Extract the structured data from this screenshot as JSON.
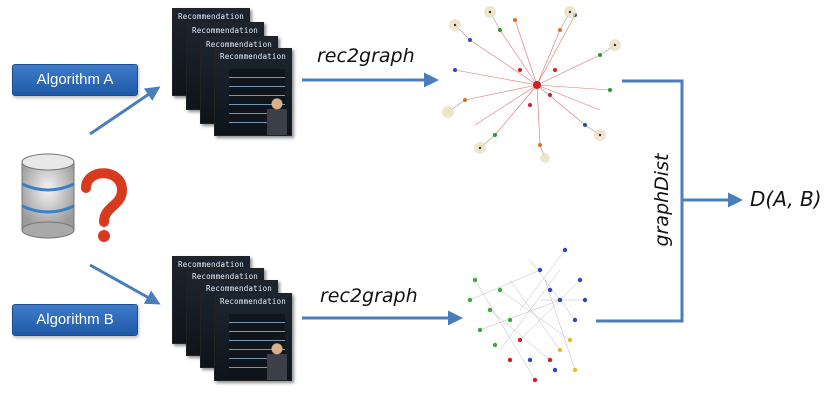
{
  "algorithms": {
    "a_label": "Algorithm A",
    "b_label": "Algorithm B"
  },
  "card_title": "Recommendation",
  "edges": {
    "top_label": "rec2graph",
    "bottom_label": "rec2graph",
    "merge_label": "graphDist"
  },
  "result": {
    "label": "D(A, B)"
  },
  "colors": {
    "arrow": "#4a7ebb",
    "box_fill": "#2a66b4",
    "graph_a_nodes": [
      "#d02020",
      "#2a9a2a",
      "#2a4ab8",
      "#e07020",
      "#333333"
    ],
    "graph_b_nodes": [
      "#2a4ab8",
      "#3aa83a",
      "#d02020",
      "#e0c020"
    ]
  },
  "icons": {
    "database": "database-question-icon"
  }
}
